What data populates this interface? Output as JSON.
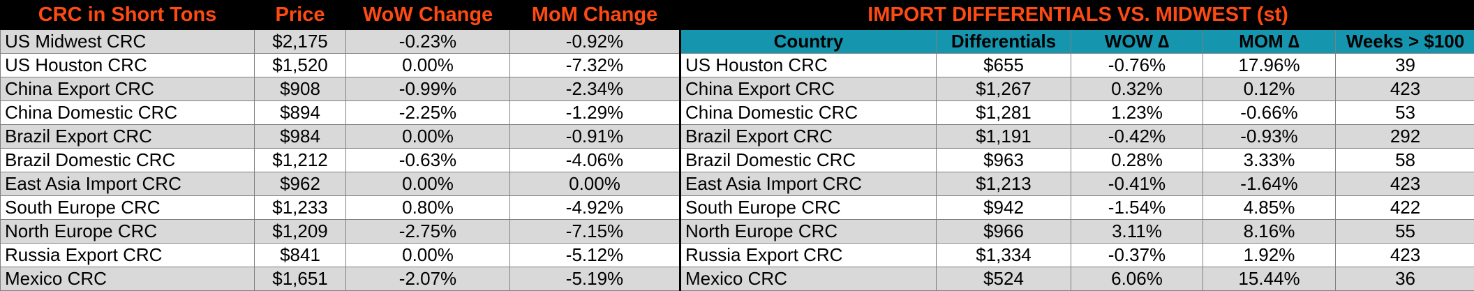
{
  "left": {
    "headers": [
      "CRC in Short Tons",
      "Price",
      "WoW Change",
      "MoM Change"
    ],
    "rows": [
      [
        "US Midwest CRC",
        "$2,175",
        "-0.23%",
        "-0.92%"
      ],
      [
        "US Houston CRC",
        "$1,520",
        "0.00%",
        "-7.32%"
      ],
      [
        "China Export CRC",
        "$908",
        "-0.99%",
        "-2.34%"
      ],
      [
        "China Domestic CRC",
        "$894",
        "-2.25%",
        "-1.29%"
      ],
      [
        "Brazil Export CRC",
        "$984",
        "0.00%",
        "-0.91%"
      ],
      [
        "Brazil Domestic CRC",
        "$1,212",
        "-0.63%",
        "-4.06%"
      ],
      [
        "East Asia Import CRC",
        "$962",
        "0.00%",
        "0.00%"
      ],
      [
        "South Europe CRC",
        "$1,233",
        "0.80%",
        "-4.92%"
      ],
      [
        "North Europe CRC",
        "$1,209",
        "-2.75%",
        "-7.15%"
      ],
      [
        "Russia Export CRC",
        "$841",
        "0.00%",
        "-5.12%"
      ],
      [
        "Mexico CRC",
        "$1,651",
        "-2.07%",
        "-5.19%"
      ]
    ]
  },
  "right": {
    "title": "IMPORT DIFFERENTIALS VS. MIDWEST (st)",
    "headers": [
      "Country",
      "Differentials",
      "WOW ∆",
      "MOM ∆",
      "Weeks > $100"
    ],
    "rows": [
      [
        "US Houston CRC",
        "$655",
        "-0.76%",
        "17.96%",
        "39"
      ],
      [
        "China Export CRC",
        "$1,267",
        "0.32%",
        "0.12%",
        "423"
      ],
      [
        "China Domestic CRC",
        "$1,281",
        "1.23%",
        "-0.66%",
        "53"
      ],
      [
        "Brazil Export CRC",
        "$1,191",
        "-0.42%",
        "-0.93%",
        "292"
      ],
      [
        "Brazil Domestic CRC",
        "$963",
        "0.28%",
        "3.33%",
        "58"
      ],
      [
        "East Asia Import CRC",
        "$1,213",
        "-0.41%",
        "-1.64%",
        "423"
      ],
      [
        "South Europe CRC",
        "$942",
        "-1.54%",
        "4.85%",
        "422"
      ],
      [
        "North Europe CRC",
        "$966",
        "3.11%",
        "8.16%",
        "55"
      ],
      [
        "Russia Export CRC",
        "$1,334",
        "-0.37%",
        "1.92%",
        "423"
      ],
      [
        "Mexico CRC",
        "$524",
        "6.06%",
        "15.44%",
        "36"
      ]
    ]
  },
  "colors": {
    "title_text": "#ff4a12",
    "title_bg": "#000000",
    "header_bg": "#1596ae",
    "row_alt_bg": "#d9d9d9",
    "row_plain_bg": "#ffffff"
  }
}
